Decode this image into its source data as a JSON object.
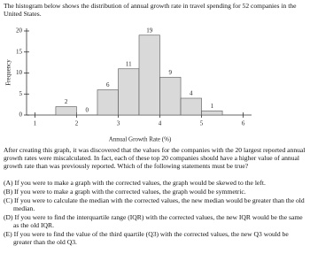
{
  "intro": "The histogram below shows the distribution of annual growth rate in travel spending for 52 companies in the United States.",
  "chart_data": {
    "type": "histogram",
    "x_label": "Annual Growth Rate (%)",
    "y_label": "Frequency",
    "bins": [
      1.5,
      2,
      2.5,
      3,
      3.5,
      4,
      4.5,
      5,
      5.5
    ],
    "values": [
      2,
      0,
      6,
      11,
      19,
      9,
      4,
      1
    ],
    "color": "#d9d9d9",
    "xlim": [
      0.8,
      6.2
    ],
    "xticks": [
      1,
      2,
      3,
      4,
      5,
      6
    ],
    "ylim": [
      0,
      20
    ],
    "yticks": [
      0,
      5,
      10,
      15,
      20
    ]
  },
  "after_text": "After creating this graph, it was discovered that the values for the companies with the 20 largest reported annual growth rates were miscalculated. In fact, each of these top 20 companies should have a higher value of annual growth rate than was previously reported. Which of the following statements must be true?",
  "options": [
    "(A) If you were to make a graph with the corrected values, the graph would be skewed to the left.",
    "(B) If you were to make a graph with the corrected values, the graph would be symmetric.",
    "(C) If you were to calculate the median with the corrected values, the new median would be greater than the old median.",
    "(D) If you were to find the interquartile range (IQR) with the corrected values, the new IQR would be the same as the old IQR.",
    "(E) If you were to find the value of the third quartile (Q3) with the corrected values, the new Q3 would be greater than the old Q3."
  ]
}
